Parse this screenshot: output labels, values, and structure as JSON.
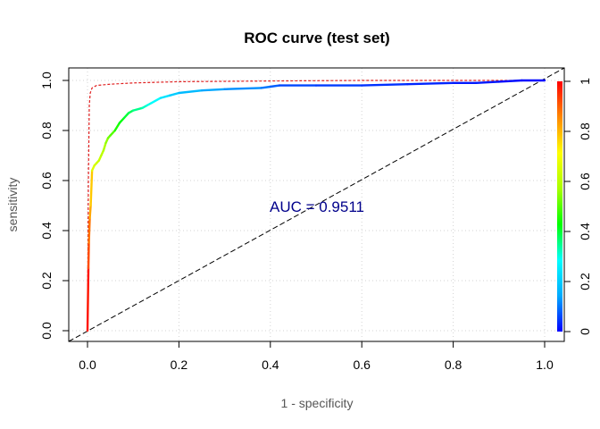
{
  "chart_data": {
    "type": "line",
    "title": "ROC curve (test set)",
    "xlabel": "1 - specificity",
    "ylabel": "sensitivity",
    "xlim": [
      0,
      1
    ],
    "ylim": [
      0,
      1
    ],
    "x_ticks": [
      "0.0",
      "0.2",
      "0.4",
      "0.6",
      "0.8",
      "1.0"
    ],
    "y_ticks": [
      "0.0",
      "0.2",
      "0.4",
      "0.6",
      "0.8",
      "1.0"
    ],
    "grid": true,
    "annotation": "AUC = 0.9511",
    "colorbar": {
      "ticks": [
        "0",
        "0.2",
        "0.4",
        "0.6",
        "0.8",
        "1"
      ],
      "colors": [
        "#0000ff",
        "#00aaff",
        "#00ffff",
        "#00ff00",
        "#aaff00",
        "#ffff00",
        "#ff8800",
        "#ff0000"
      ]
    },
    "series": [
      {
        "style": "solid-colored",
        "x": [
          0,
          0.002,
          0.003,
          0.005,
          0.007,
          0.01,
          0.015,
          0.02,
          0.025,
          0.03,
          0.035,
          0.04,
          0.045,
          0.05,
          0.06,
          0.07,
          0.08,
          0.09,
          0.1,
          0.12,
          0.13,
          0.14,
          0.16,
          0.18,
          0.2,
          0.25,
          0.3,
          0.38,
          0.4,
          0.42,
          0.5,
          0.6,
          0.7,
          0.8,
          0.85,
          0.9,
          0.95,
          1.0
        ],
        "y": [
          0,
          0.25,
          0.35,
          0.45,
          0.5,
          0.64,
          0.66,
          0.67,
          0.68,
          0.7,
          0.72,
          0.75,
          0.77,
          0.78,
          0.8,
          0.83,
          0.85,
          0.87,
          0.88,
          0.89,
          0.9,
          0.91,
          0.93,
          0.94,
          0.95,
          0.96,
          0.965,
          0.97,
          0.975,
          0.98,
          0.98,
          0.98,
          0.985,
          0.99,
          0.99,
          0.995,
          1.0,
          1.0
        ],
        "color_values": [
          0.98,
          0.92,
          0.88,
          0.82,
          0.78,
          0.66,
          0.64,
          0.63,
          0.62,
          0.6,
          0.58,
          0.55,
          0.52,
          0.5,
          0.45,
          0.42,
          0.4,
          0.38,
          0.35,
          0.32,
          0.3,
          0.28,
          0.24,
          0.2,
          0.17,
          0.14,
          0.12,
          0.1,
          0.08,
          0.06,
          0.05,
          0.04,
          0.03,
          0.02,
          0.02,
          0.01,
          0.005,
          0
        ]
      },
      {
        "style": "dashed",
        "color": "#e02020",
        "x": [
          0,
          0.002,
          0.004,
          0.006,
          0.01,
          0.02,
          0.05,
          0.1,
          0.2,
          0.4,
          0.6,
          0.8,
          1.0
        ],
        "y": [
          0,
          0.6,
          0.9,
          0.95,
          0.97,
          0.98,
          0.985,
          0.99,
          0.995,
          0.998,
          1.0,
          1.0,
          1.0
        ]
      },
      {
        "style": "dashed-diagonal",
        "color": "#000000",
        "x": [
          0,
          1
        ],
        "y": [
          0,
          1
        ]
      }
    ]
  }
}
